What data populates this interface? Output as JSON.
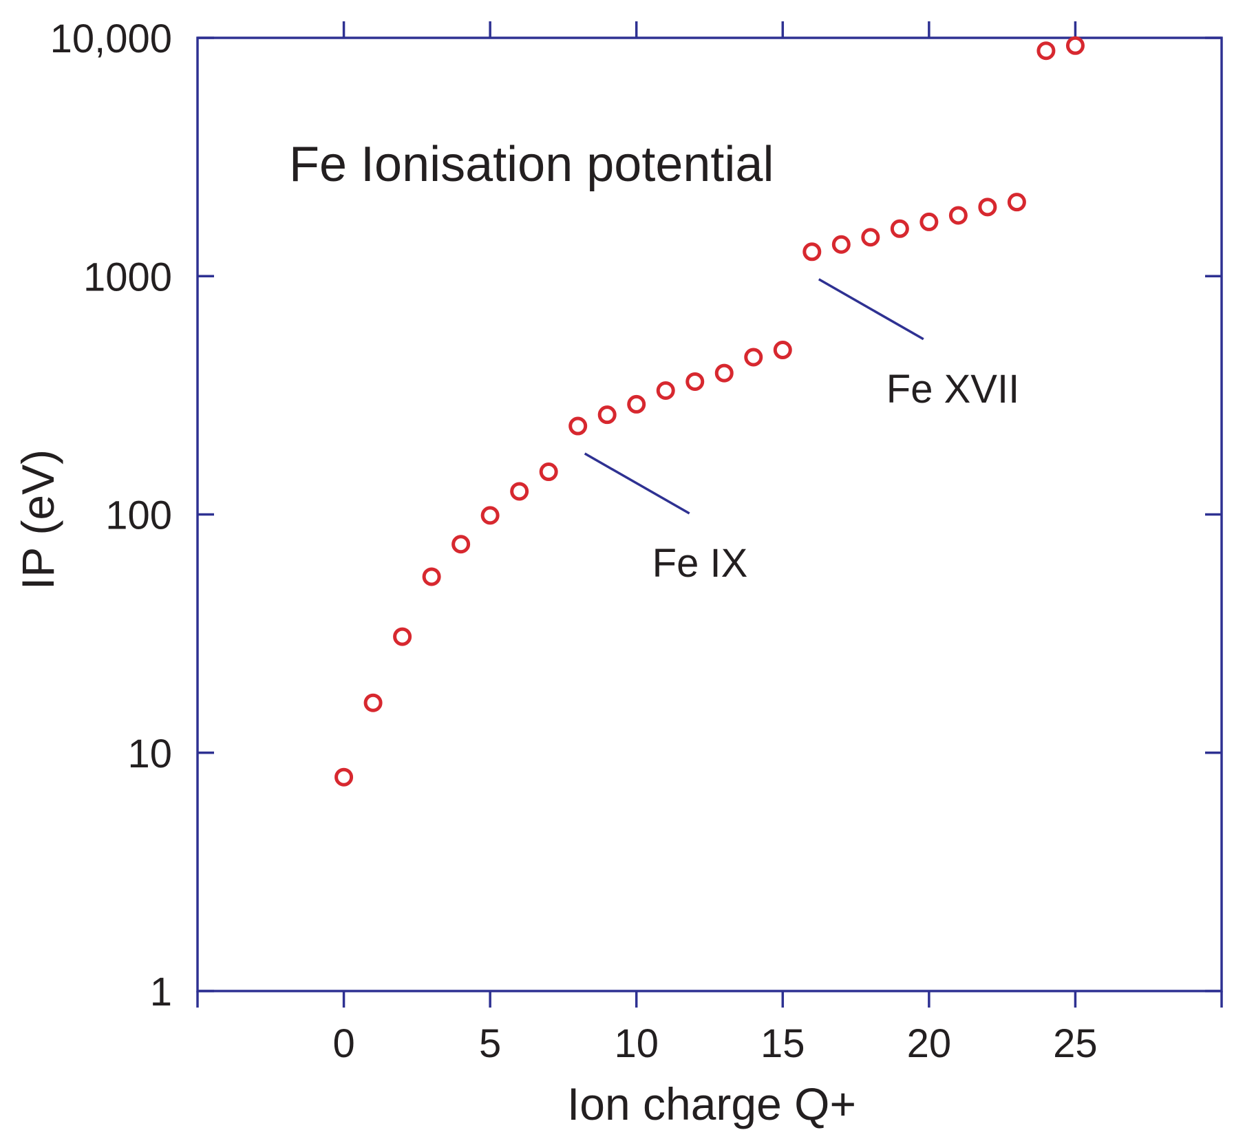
{
  "chart_data": {
    "type": "scatter",
    "title": "Fe Ionisation potential",
    "xlabel": "Ion charge Q+",
    "ylabel": "IP (eV)",
    "xlim": [
      -5,
      30
    ],
    "ylim": [
      1,
      10000
    ],
    "yscale": "log",
    "grid": false,
    "x_ticks": [
      0,
      5,
      10,
      15,
      20,
      25
    ],
    "x_tick_labels": [
      "0",
      "5",
      "10",
      "15",
      "20",
      "25"
    ],
    "y_ticks": [
      1,
      10,
      100,
      1000,
      10000
    ],
    "y_tick_labels": [
      "1",
      "10",
      "100",
      "1000",
      "10,000"
    ],
    "series": [
      {
        "name": "Fe ionisation potential",
        "marker": "open-circle",
        "color": "#d7282f",
        "x": [
          0,
          1,
          2,
          3,
          4,
          5,
          6,
          7,
          8,
          9,
          10,
          11,
          12,
          13,
          14,
          15,
          16,
          17,
          18,
          19,
          20,
          21,
          22,
          23,
          24,
          25
        ],
        "y": [
          7.9,
          16.2,
          30.7,
          54.8,
          75.0,
          99.1,
          125,
          151,
          235,
          262,
          290,
          331,
          361,
          392,
          457,
          490,
          1266,
          1358,
          1456,
          1582,
          1689,
          1799,
          1950,
          2045,
          8828,
          9278
        ]
      }
    ],
    "annotations": [
      {
        "text": "Fe IX",
        "x": 8,
        "y": 235
      },
      {
        "text": "Fe XVII",
        "x": 16,
        "y": 1266
      }
    ]
  },
  "colors": {
    "axis": "#2e3192",
    "marker": "#d7282f",
    "text": "#231f20",
    "background": "#ffffff"
  }
}
